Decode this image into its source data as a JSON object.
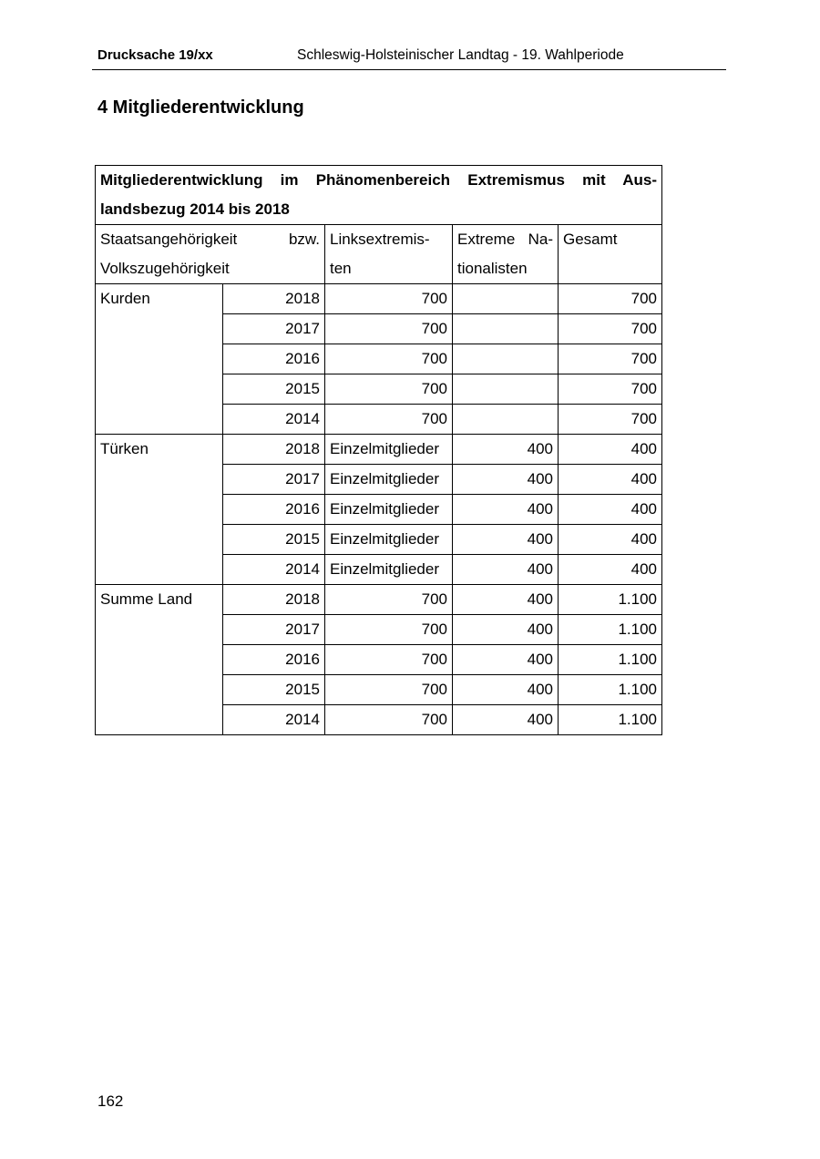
{
  "header": {
    "doc_number": "Drucksache 19/xx",
    "institution": "Schleswig-Holsteinischer Landtag - 19. Wahlperiode"
  },
  "section_title": "4 Mitgliederentwicklung",
  "table": {
    "caption": "Mitgliederentwicklung im Phänomenbereich Extremismus mit Auslandsbezug 2014 bis 2018",
    "caption_line1": "Mitgliederentwicklung im Phänomenbereich Extremismus mit Aus-",
    "caption_line2": "landsbezug 2014 bis 2018",
    "headers": {
      "group_line1": "Staatsangehörigkeit bzw.",
      "group_line2": "Volkszugehörigkeit",
      "left_line1": "Linksextremis-",
      "left_line2": "ten",
      "nat_line1": "Extreme Na-",
      "nat_line2": "tionalisten",
      "total": "Gesamt"
    },
    "groups": [
      {
        "name": "Kurden",
        "rows": [
          {
            "year": "2018",
            "links": "700",
            "nat": "",
            "total": "700"
          },
          {
            "year": "2017",
            "links": "700",
            "nat": "",
            "total": "700"
          },
          {
            "year": "2016",
            "links": "700",
            "nat": "",
            "total": "700"
          },
          {
            "year": "2015",
            "links": "700",
            "nat": "",
            "total": "700"
          },
          {
            "year": "2014",
            "links": "700",
            "nat": "",
            "total": "700"
          }
        ]
      },
      {
        "name": "Türken",
        "rows": [
          {
            "year": "2018",
            "links": "Einzelmitglieder",
            "nat": "400",
            "total": "400"
          },
          {
            "year": "2017",
            "links": "Einzelmitglieder",
            "nat": "400",
            "total": "400"
          },
          {
            "year": "2016",
            "links": "Einzelmitglieder",
            "nat": "400",
            "total": "400"
          },
          {
            "year": "2015",
            "links": "Einzelmitglieder",
            "nat": "400",
            "total": "400"
          },
          {
            "year": "2014",
            "links": "Einzelmitglieder",
            "nat": "400",
            "total": "400"
          }
        ]
      },
      {
        "name": "Summe Land",
        "rows": [
          {
            "year": "2018",
            "links": "700",
            "nat": "400",
            "total": "1.100"
          },
          {
            "year": "2017",
            "links": "700",
            "nat": "400",
            "total": "1.100"
          },
          {
            "year": "2016",
            "links": "700",
            "nat": "400",
            "total": "1.100"
          },
          {
            "year": "2015",
            "links": "700",
            "nat": "400",
            "total": "1.100"
          },
          {
            "year": "2014",
            "links": "700",
            "nat": "400",
            "total": "1.100"
          }
        ]
      }
    ]
  },
  "footer": {
    "page_number": "162"
  }
}
